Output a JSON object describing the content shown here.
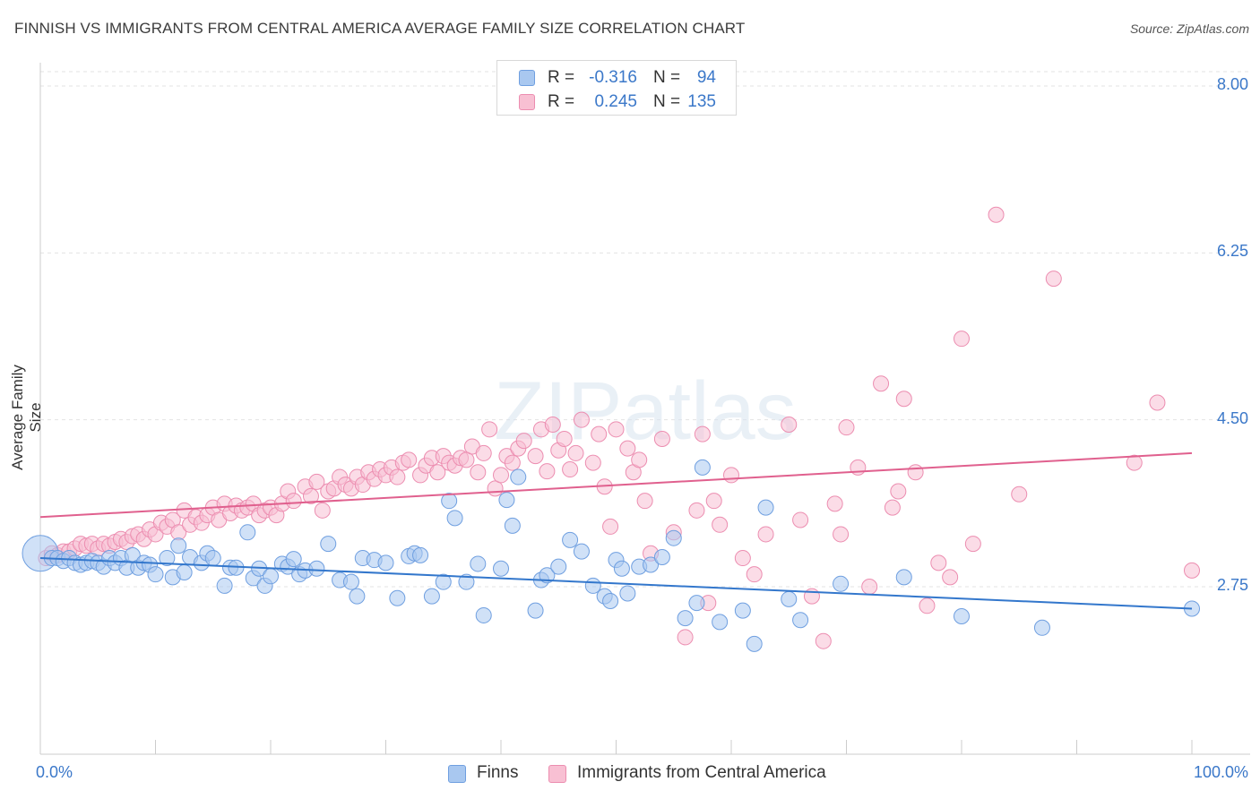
{
  "header": {
    "title": "FINNISH VS IMMIGRANTS FROM CENTRAL AMERICA AVERAGE FAMILY SIZE CORRELATION CHART",
    "source": "Source: ZipAtlas.com"
  },
  "watermark": "ZIPatlas",
  "stats": [
    {
      "r_label": "R =",
      "r_value": "-0.316",
      "n_label": "N =",
      "n_value": "94",
      "color": "#a9c8f0",
      "border": "#6f9fe0"
    },
    {
      "r_label": "R =",
      "r_value": "0.245",
      "n_label": "N =",
      "n_value": "135",
      "color": "#f8c0d3",
      "border": "#ec8db0"
    }
  ],
  "legend": [
    {
      "label": "Finns",
      "color": "#a9c8f0",
      "border": "#6f9fe0"
    },
    {
      "label": "Immigrants from Central America",
      "color": "#f8c0d3",
      "border": "#ec8db0"
    }
  ],
  "colors": {
    "blue_line": "#3377cc",
    "pink_line": "#e0608e",
    "grid": "#e3e3e3",
    "axis": "#cccccc",
    "tick_text": "#3b78c9"
  },
  "chart_data": {
    "type": "scatter",
    "title": "FINNISH VS IMMIGRANTS FROM CENTRAL AMERICA AVERAGE FAMILY SIZE CORRELATION CHART",
    "xlabel": "",
    "ylabel": "Average Family Size",
    "xlim": [
      0,
      100
    ],
    "ylim": [
      1.7,
      8.3
    ],
    "x_tick_labels": [
      "0.0%",
      "100.0%"
    ],
    "y_ticks": [
      2.75,
      4.5,
      6.25,
      8.0
    ],
    "y_tick_labels": [
      "2.75",
      "4.50",
      "6.25",
      "8.00"
    ],
    "grid": true,
    "legend_position": "bottom",
    "series": [
      {
        "name": "Finns",
        "trend": [
          [
            0,
            3.05
          ],
          [
            100,
            2.52
          ]
        ],
        "points": [
          [
            0,
            3.1
          ],
          [
            1,
            3.05
          ],
          [
            1.5,
            3.05
          ],
          [
            2,
            3.02
          ],
          [
            2.5,
            3.05
          ],
          [
            3,
            3.0
          ],
          [
            3.5,
            2.98
          ],
          [
            4,
            3.0
          ],
          [
            4.5,
            3.02
          ],
          [
            5,
            3.0
          ],
          [
            5.5,
            2.96
          ],
          [
            6,
            3.05
          ],
          [
            6.5,
            3.0
          ],
          [
            7,
            3.05
          ],
          [
            7.5,
            2.95
          ],
          [
            8,
            3.08
          ],
          [
            8.5,
            2.95
          ],
          [
            9,
            3.0
          ],
          [
            9.5,
            2.98
          ],
          [
            10,
            2.88
          ],
          [
            11,
            3.05
          ],
          [
            11.5,
            2.85
          ],
          [
            12,
            3.18
          ],
          [
            12.5,
            2.9
          ],
          [
            13,
            3.06
          ],
          [
            14,
            3.0
          ],
          [
            14.5,
            3.1
          ],
          [
            15,
            3.05
          ],
          [
            16,
            2.76
          ],
          [
            16.5,
            2.95
          ],
          [
            17,
            2.95
          ],
          [
            18,
            3.32
          ],
          [
            18.5,
            2.84
          ],
          [
            19,
            2.94
          ],
          [
            19.5,
            2.76
          ],
          [
            20,
            2.86
          ],
          [
            21,
            2.99
          ],
          [
            21.5,
            2.96
          ],
          [
            22,
            3.04
          ],
          [
            22.5,
            2.88
          ],
          [
            23,
            2.92
          ],
          [
            24,
            2.94
          ],
          [
            25,
            3.2
          ],
          [
            26,
            2.82
          ],
          [
            27,
            2.8
          ],
          [
            27.5,
            2.65
          ],
          [
            28,
            3.05
          ],
          [
            29,
            3.03
          ],
          [
            30,
            3.0
          ],
          [
            31,
            2.63
          ],
          [
            32,
            3.07
          ],
          [
            32.5,
            3.1
          ],
          [
            33,
            3.08
          ],
          [
            34,
            2.65
          ],
          [
            35,
            2.8
          ],
          [
            35.5,
            3.65
          ],
          [
            36,
            3.47
          ],
          [
            37,
            2.8
          ],
          [
            38,
            2.99
          ],
          [
            38.5,
            2.45
          ],
          [
            40,
            2.94
          ],
          [
            40.5,
            3.66
          ],
          [
            41,
            3.39
          ],
          [
            41.5,
            3.9
          ],
          [
            43,
            2.5
          ],
          [
            43.5,
            2.82
          ],
          [
            44,
            2.87
          ],
          [
            45,
            2.96
          ],
          [
            46,
            3.24
          ],
          [
            47,
            3.12
          ],
          [
            48,
            2.76
          ],
          [
            49,
            2.65
          ],
          [
            49.5,
            2.6
          ],
          [
            50,
            3.03
          ],
          [
            50.5,
            2.94
          ],
          [
            51,
            2.68
          ],
          [
            52,
            2.96
          ],
          [
            53,
            2.98
          ],
          [
            54,
            3.06
          ],
          [
            55,
            3.26
          ],
          [
            56,
            2.42
          ],
          [
            57,
            2.58
          ],
          [
            57.5,
            4.0
          ],
          [
            59,
            2.38
          ],
          [
            61,
            2.5
          ],
          [
            62,
            2.15
          ],
          [
            63,
            3.58
          ],
          [
            65,
            2.62
          ],
          [
            66,
            2.4
          ],
          [
            69.5,
            2.78
          ],
          [
            75,
            2.85
          ],
          [
            80,
            2.44
          ],
          [
            87,
            2.32
          ],
          [
            100,
            2.52
          ]
        ]
      },
      {
        "name": "Immigrants from Central America",
        "trend": [
          [
            0,
            3.48
          ],
          [
            100,
            4.15
          ]
        ],
        "points": [
          [
            0.5,
            3.05
          ],
          [
            1,
            3.1
          ],
          [
            1.5,
            3.08
          ],
          [
            2,
            3.12
          ],
          [
            2.5,
            3.12
          ],
          [
            3,
            3.15
          ],
          [
            3.5,
            3.2
          ],
          [
            4,
            3.18
          ],
          [
            4.5,
            3.2
          ],
          [
            5,
            3.15
          ],
          [
            5.5,
            3.2
          ],
          [
            6,
            3.18
          ],
          [
            6.5,
            3.22
          ],
          [
            7,
            3.25
          ],
          [
            7.5,
            3.22
          ],
          [
            8,
            3.28
          ],
          [
            8.5,
            3.3
          ],
          [
            9,
            3.25
          ],
          [
            9.5,
            3.35
          ],
          [
            10,
            3.3
          ],
          [
            10.5,
            3.42
          ],
          [
            11,
            3.38
          ],
          [
            11.5,
            3.45
          ],
          [
            12,
            3.32
          ],
          [
            12.5,
            3.55
          ],
          [
            13,
            3.4
          ],
          [
            13.5,
            3.48
          ],
          [
            14,
            3.42
          ],
          [
            14.5,
            3.5
          ],
          [
            15,
            3.58
          ],
          [
            15.5,
            3.45
          ],
          [
            16,
            3.62
          ],
          [
            16.5,
            3.52
          ],
          [
            17,
            3.6
          ],
          [
            17.5,
            3.55
          ],
          [
            18,
            3.58
          ],
          [
            18.5,
            3.62
          ],
          [
            19,
            3.5
          ],
          [
            19.5,
            3.55
          ],
          [
            20,
            3.58
          ],
          [
            20.5,
            3.5
          ],
          [
            21,
            3.62
          ],
          [
            21.5,
            3.75
          ],
          [
            22,
            3.65
          ],
          [
            23,
            3.8
          ],
          [
            23.5,
            3.7
          ],
          [
            24,
            3.85
          ],
          [
            24.5,
            3.55
          ],
          [
            25,
            3.75
          ],
          [
            25.5,
            3.78
          ],
          [
            26,
            3.9
          ],
          [
            26.5,
            3.82
          ],
          [
            27,
            3.78
          ],
          [
            27.5,
            3.9
          ],
          [
            28,
            3.82
          ],
          [
            28.5,
            3.95
          ],
          [
            29,
            3.88
          ],
          [
            29.5,
            3.98
          ],
          [
            30,
            3.92
          ],
          [
            30.5,
            4.0
          ],
          [
            31,
            3.9
          ],
          [
            31.5,
            4.05
          ],
          [
            32,
            4.08
          ],
          [
            33,
            3.92
          ],
          [
            33.5,
            4.02
          ],
          [
            34,
            4.1
          ],
          [
            34.5,
            3.95
          ],
          [
            35,
            4.12
          ],
          [
            35.5,
            4.05
          ],
          [
            36,
            4.02
          ],
          [
            36.5,
            4.1
          ],
          [
            37,
            4.08
          ],
          [
            37.5,
            4.22
          ],
          [
            38,
            3.95
          ],
          [
            38.5,
            4.15
          ],
          [
            39,
            4.4
          ],
          [
            39.5,
            3.78
          ],
          [
            40,
            3.92
          ],
          [
            40.5,
            4.12
          ],
          [
            41,
            4.05
          ],
          [
            41.5,
            4.2
          ],
          [
            42,
            4.28
          ],
          [
            43,
            4.12
          ],
          [
            43.5,
            4.4
          ],
          [
            44,
            3.96
          ],
          [
            44.5,
            4.45
          ],
          [
            45,
            4.18
          ],
          [
            45.5,
            4.3
          ],
          [
            46,
            3.98
          ],
          [
            46.5,
            4.15
          ],
          [
            47,
            4.5
          ],
          [
            48,
            4.05
          ],
          [
            48.5,
            4.35
          ],
          [
            49,
            3.8
          ],
          [
            49.5,
            3.38
          ],
          [
            50,
            4.4
          ],
          [
            51,
            4.2
          ],
          [
            51.5,
            3.95
          ],
          [
            52,
            4.08
          ],
          [
            52.5,
            3.65
          ],
          [
            53,
            3.1
          ],
          [
            54,
            4.3
          ],
          [
            55,
            3.32
          ],
          [
            56,
            2.22
          ],
          [
            57,
            3.55
          ],
          [
            57.5,
            4.35
          ],
          [
            58,
            2.58
          ],
          [
            58.5,
            3.65
          ],
          [
            59,
            3.4
          ],
          [
            60,
            3.92
          ],
          [
            61,
            3.05
          ],
          [
            62,
            2.88
          ],
          [
            63,
            3.3
          ],
          [
            65,
            4.45
          ],
          [
            66,
            3.45
          ],
          [
            67,
            2.65
          ],
          [
            68,
            2.18
          ],
          [
            69,
            3.62
          ],
          [
            69.5,
            3.3
          ],
          [
            70,
            4.42
          ],
          [
            71,
            4.0
          ],
          [
            72,
            2.75
          ],
          [
            73,
            4.88
          ],
          [
            74,
            3.58
          ],
          [
            74.5,
            3.75
          ],
          [
            75,
            4.72
          ],
          [
            76,
            3.95
          ],
          [
            77,
            2.55
          ],
          [
            78,
            3.0
          ],
          [
            79,
            2.85
          ],
          [
            80,
            5.35
          ],
          [
            81,
            3.2
          ],
          [
            83,
            6.65
          ],
          [
            85,
            3.72
          ],
          [
            88,
            5.98
          ],
          [
            95,
            4.05
          ],
          [
            97,
            4.68
          ],
          [
            100,
            2.92
          ]
        ]
      }
    ]
  }
}
